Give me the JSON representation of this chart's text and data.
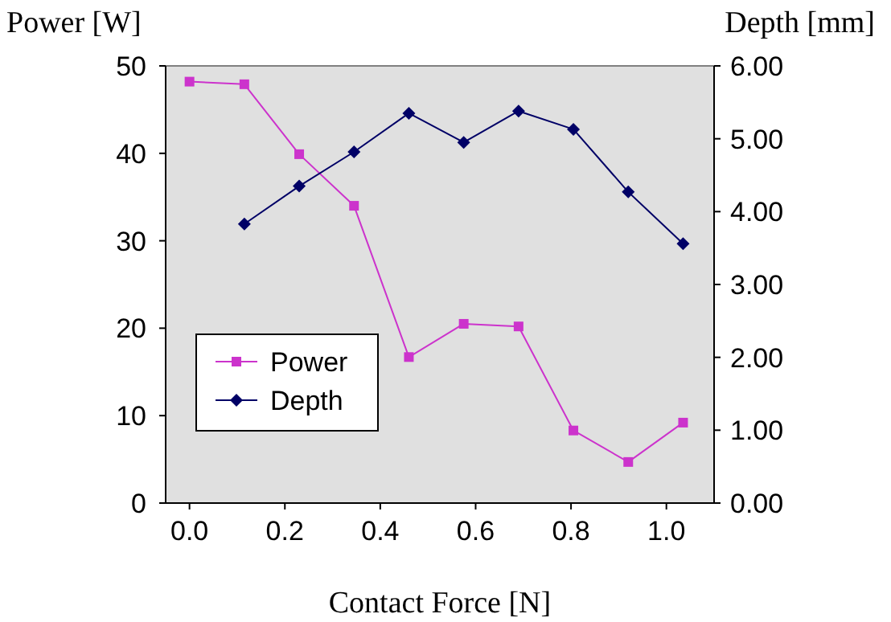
{
  "chart_data": {
    "type": "line",
    "xlabel": "Contact Force [N]",
    "ylabel": "Power [W]",
    "y2label": "Depth [mm]",
    "xlim": [
      -0.05,
      1.1
    ],
    "xticks": [
      {
        "value": 0,
        "label": "0.0"
      },
      {
        "value": 0.2,
        "label": "0.2"
      },
      {
        "value": 0.4,
        "label": "0.4"
      },
      {
        "value": 0.6,
        "label": "0.6"
      },
      {
        "value": 0.8,
        "label": "0.8"
      },
      {
        "value": 1,
        "label": "1.0"
      }
    ],
    "ylim": [
      0,
      50
    ],
    "yticks": [
      0,
      10,
      20,
      30,
      40,
      50
    ],
    "y2lim": [
      0,
      6
    ],
    "y2ticks": [
      {
        "value": 0,
        "label": "0.00"
      },
      {
        "value": 1,
        "label": "1.00"
      },
      {
        "value": 2,
        "label": "2.00"
      },
      {
        "value": 3,
        "label": "3.00"
      },
      {
        "value": 4,
        "label": "4.00"
      },
      {
        "value": 5,
        "label": "5.00"
      },
      {
        "value": 6,
        "label": "6.00"
      }
    ],
    "grid": false,
    "legend": "bottom left",
    "series": [
      {
        "name": "Power",
        "color": "#cc33cc",
        "marker": "square",
        "x": [
          0,
          0.115,
          0.23,
          0.345,
          0.46,
          0.575,
          0.69,
          0.805,
          0.92,
          1.035
        ],
        "values": [
          48.2,
          47.9,
          39.9,
          34.0,
          16.7,
          20.5,
          20.2,
          8.3,
          4.7,
          9.2
        ]
      },
      {
        "name": "Depth",
        "color": "#000066",
        "marker": "diamond",
        "axis": "y2",
        "x": [
          0.115,
          0.23,
          0.345,
          0.46,
          0.575,
          0.69,
          0.805,
          0.92,
          1.035
        ],
        "values": [
          3.83,
          4.35,
          4.82,
          5.35,
          4.95,
          5.38,
          5.13,
          4.27,
          3.56
        ]
      }
    ]
  }
}
